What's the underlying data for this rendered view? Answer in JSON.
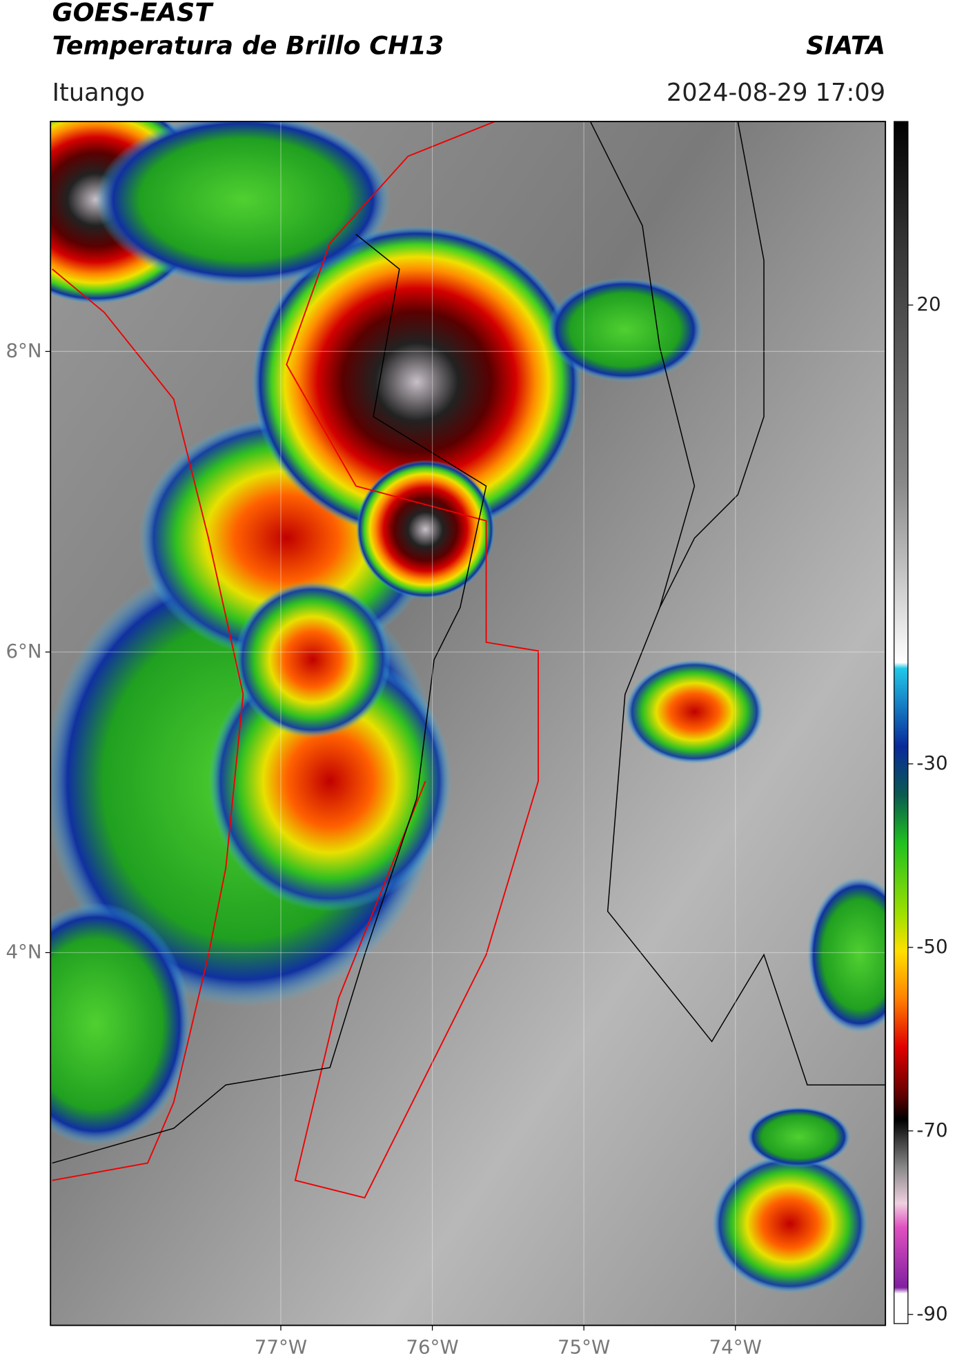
{
  "map": {
    "title": "GOES-EAST",
    "subtitle": "Temperatura de Brillo CH13",
    "agency": "SIATA",
    "place": "Ituango",
    "datetime": "2024-08-29 17:09",
    "xlim": [
      -78.52,
      -73.01
    ],
    "ylim": [
      1.52,
      9.53
    ],
    "xticks": [
      {
        "value": -77,
        "label": "77°W"
      },
      {
        "value": -76,
        "label": "76°W"
      },
      {
        "value": -75,
        "label": "75°W"
      },
      {
        "value": -74,
        "label": "74°W"
      }
    ],
    "yticks": [
      {
        "value": 8,
        "label": "8°N"
      },
      {
        "value": 6,
        "label": "6°N"
      },
      {
        "value": 4,
        "label": "4°N"
      }
    ],
    "grid": true,
    "colorbar": {
      "lim": [
        -91,
        40
      ],
      "ticks": [
        20,
        -30,
        -50,
        -70,
        -90
      ]
    }
  }
}
